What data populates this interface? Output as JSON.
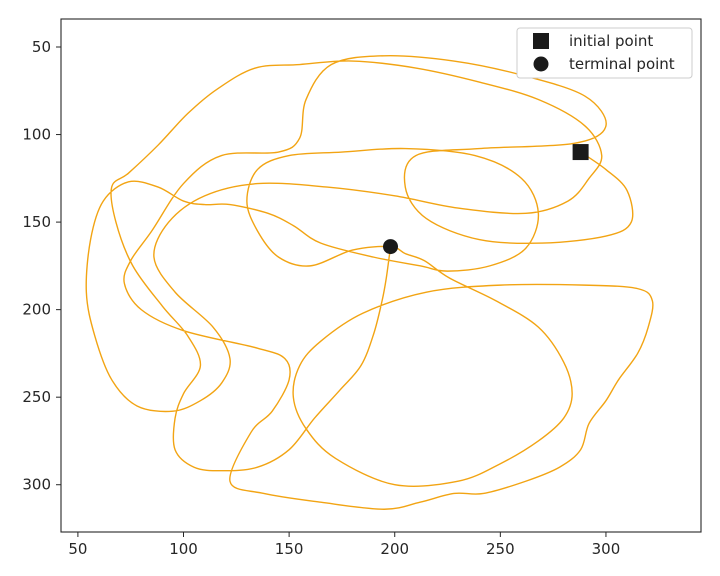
{
  "chart_data": {
    "type": "line",
    "title": "",
    "xlabel": "",
    "ylabel": "",
    "xlim": [
      42,
      345
    ],
    "ylim": [
      327,
      34
    ],
    "y_inverted": true,
    "grid": false,
    "legend_placement": "top-right",
    "x_ticks": [
      50,
      100,
      150,
      200,
      250,
      300
    ],
    "y_ticks": [
      50,
      100,
      150,
      200,
      250,
      300
    ],
    "series": [
      {
        "color": "#f2a413",
        "points": [
          [
            288,
            110
          ],
          [
            300,
            120
          ],
          [
            310,
            132
          ],
          [
            312,
            150
          ],
          [
            300,
            158
          ],
          [
            270,
            162
          ],
          [
            240,
            160
          ],
          [
            215,
            148
          ],
          [
            205,
            130
          ],
          [
            210,
            112
          ],
          [
            240,
            108
          ],
          [
            285,
            105
          ],
          [
            300,
            95
          ],
          [
            290,
            78
          ],
          [
            260,
            66
          ],
          [
            228,
            58
          ],
          [
            195,
            55
          ],
          [
            170,
            60
          ],
          [
            158,
            80
          ],
          [
            155,
            102
          ],
          [
            145,
            110
          ],
          [
            118,
            112
          ],
          [
            100,
            128
          ],
          [
            85,
            155
          ],
          [
            75,
            172
          ],
          [
            72,
            185
          ],
          [
            80,
            200
          ],
          [
            100,
            212
          ],
          [
            135,
            222
          ],
          [
            148,
            228
          ],
          [
            150,
            240
          ],
          [
            142,
            258
          ],
          [
            132,
            270
          ],
          [
            122,
            298
          ],
          [
            138,
            305
          ],
          [
            165,
            310
          ],
          [
            195,
            314
          ],
          [
            212,
            310
          ],
          [
            228,
            305
          ],
          [
            242,
            305
          ],
          [
            262,
            298
          ],
          [
            278,
            290
          ],
          [
            288,
            280
          ],
          [
            292,
            265
          ],
          [
            300,
            252
          ],
          [
            306,
            240
          ],
          [
            315,
            225
          ],
          [
            320,
            210
          ],
          [
            322,
            195
          ],
          [
            315,
            188
          ],
          [
            290,
            186
          ],
          [
            250,
            186
          ],
          [
            215,
            190
          ],
          [
            185,
            202
          ],
          [
            165,
            218
          ],
          [
            155,
            232
          ],
          [
            152,
            250
          ],
          [
            158,
            268
          ],
          [
            172,
            285
          ],
          [
            200,
            300
          ],
          [
            230,
            298
          ],
          [
            250,
            288
          ],
          [
            268,
            275
          ],
          [
            280,
            262
          ],
          [
            284,
            248
          ],
          [
            280,
            230
          ],
          [
            268,
            210
          ],
          [
            248,
            195
          ],
          [
            226,
            182
          ],
          [
            214,
            172
          ],
          [
            205,
            168
          ],
          [
            198,
            164
          ],
          [
            180,
            166
          ],
          [
            160,
            175
          ],
          [
            145,
            170
          ],
          [
            135,
            155
          ],
          [
            130,
            138
          ],
          [
            135,
            120
          ],
          [
            150,
            112
          ],
          [
            175,
            110
          ],
          [
            205,
            108
          ],
          [
            238,
            112
          ],
          [
            260,
            125
          ],
          [
            268,
            145
          ],
          [
            262,
            165
          ],
          [
            245,
            175
          ],
          [
            225,
            178
          ],
          [
            212,
            175
          ],
          [
            190,
            170
          ],
          [
            165,
            162
          ],
          [
            152,
            152
          ],
          [
            140,
            145
          ],
          [
            122,
            140
          ],
          [
            110,
            140
          ],
          [
            100,
            138
          ],
          [
            88,
            130
          ],
          [
            74,
            127
          ],
          [
            62,
            138
          ],
          [
            56,
            160
          ],
          [
            54,
            190
          ],
          [
            58,
            215
          ],
          [
            66,
            240
          ],
          [
            78,
            255
          ],
          [
            95,
            258
          ],
          [
            108,
            252
          ],
          [
            118,
            242
          ],
          [
            122,
            228
          ],
          [
            114,
            210
          ],
          [
            96,
            190
          ],
          [
            86,
            170
          ],
          [
            93,
            150
          ],
          [
            110,
            135
          ],
          [
            135,
            128
          ],
          [
            168,
            130
          ],
          [
            200,
            135
          ],
          [
            230,
            142
          ],
          [
            262,
            145
          ],
          [
            282,
            138
          ],
          [
            292,
            125
          ],
          [
            298,
            112
          ],
          [
            290,
            95
          ],
          [
            268,
            80
          ],
          [
            240,
            70
          ],
          [
            210,
            62
          ],
          [
            180,
            58
          ],
          [
            155,
            60
          ],
          [
            134,
            62
          ],
          [
            116,
            74
          ],
          [
            102,
            88
          ],
          [
            88,
            106
          ],
          [
            74,
            122
          ],
          [
            66,
            130
          ],
          [
            68,
            150
          ],
          [
            76,
            175
          ],
          [
            90,
            198
          ],
          [
            102,
            215
          ],
          [
            108,
            232
          ],
          [
            100,
            248
          ],
          [
            96,
            262
          ],
          [
            96,
            280
          ],
          [
            105,
            290
          ],
          [
            118,
            292
          ],
          [
            135,
            290
          ],
          [
            150,
            280
          ],
          [
            162,
            262
          ],
          [
            174,
            246
          ],
          [
            184,
            232
          ],
          [
            190,
            214
          ],
          [
            194,
            195
          ],
          [
            196,
            182
          ],
          [
            198,
            164
          ]
        ]
      }
    ],
    "markers": [
      {
        "label": "initial point",
        "shape": "square",
        "x": 288,
        "y": 110
      },
      {
        "label": "terminal point",
        "shape": "circle",
        "x": 198,
        "y": 164
      }
    ]
  }
}
